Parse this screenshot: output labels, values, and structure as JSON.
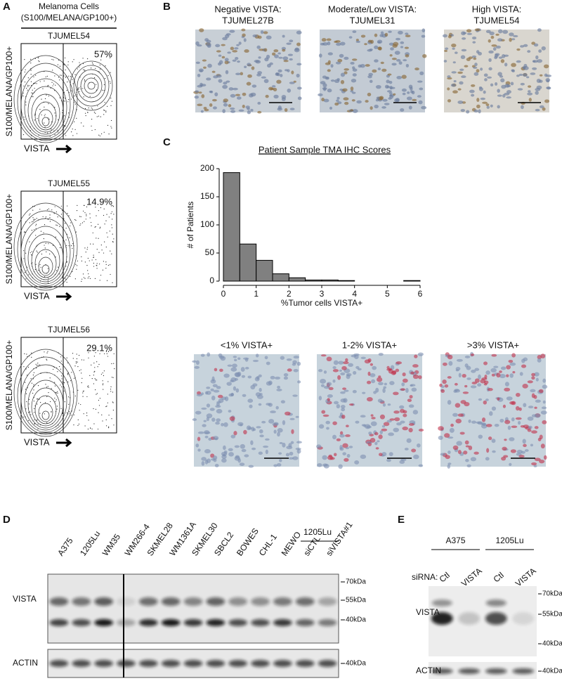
{
  "panel_a": {
    "label": "A",
    "header": "Melanoma Cells",
    "subheader": "(S100/MELANA/GP100+)",
    "plots": [
      {
        "title": "TJUMEL54",
        "percent": "57%",
        "y_label": "S100/MELANA/GP100+",
        "x_label": "VISTA"
      },
      {
        "title": "TJUMEL55",
        "percent": "14.9%",
        "y_label": "S100/MELANA/GP100+",
        "x_label": "VISTA"
      },
      {
        "title": "TJUMEL56",
        "percent": "29.1%",
        "y_label": "S100/MELANA/GP100+",
        "x_label": "VISTA"
      }
    ]
  },
  "panel_b": {
    "label": "B",
    "images": [
      {
        "line1": "Negative VISTA:",
        "line2": "TJUMEL27B"
      },
      {
        "line1": "Moderate/Low VISTA:",
        "line2": "TJUMEL31"
      },
      {
        "line1": "High VISTA:",
        "line2": "TJUMEL54"
      }
    ]
  },
  "panel_c": {
    "label": "C",
    "images": [
      "<1% VISTA+",
      "1-2% VISTA+",
      ">3% VISTA+"
    ]
  },
  "chart_data": {
    "type": "histogram",
    "title": "Patient Sample TMA IHC Scores",
    "y_label": "# of Patients",
    "x_label": "%Tumor cells VISTA+",
    "bins": [
      0,
      0.5,
      1,
      1.5,
      2,
      2.5,
      3,
      3.5,
      4,
      4.5,
      5,
      5.5,
      6
    ],
    "values": [
      193,
      66,
      37,
      13,
      6,
      2,
      2,
      1,
      0,
      0,
      0,
      1
    ],
    "color": "#808080",
    "xlim": [
      0,
      6
    ],
    "xticks": [
      0,
      1,
      2,
      3,
      4,
      5,
      6
    ],
    "ylim": [
      0,
      200
    ],
    "yticks": [
      0,
      50,
      100,
      150,
      200
    ]
  },
  "panel_d": {
    "label": "D",
    "lanes": [
      "A375",
      "1205Lu",
      "WM35",
      "WM266-4",
      "SKMEL28",
      "WM1361A",
      "SKMEL30",
      "SBCL2",
      "BOWES",
      "CHL-1",
      "MEWO",
      "siCTL",
      "siVISTA#1"
    ],
    "group": "1205Lu",
    "rows": [
      "VISTA",
      "ACTIN"
    ],
    "markers": [
      "70kDa",
      "55kDa",
      "40kDa"
    ],
    "actin_marker": "40kDa"
  },
  "panel_e": {
    "label": "E",
    "groups": [
      "A375",
      "1205Lu"
    ],
    "sirna_label": "siRNA:",
    "lanes": [
      "Ctl",
      "VISTA",
      "Ctl",
      "VISTA"
    ],
    "rows": [
      "VISTA",
      "ACTIN"
    ],
    "markers": [
      "70kDa",
      "55kDa",
      "40kDa"
    ],
    "actin_marker": "40kDa"
  }
}
